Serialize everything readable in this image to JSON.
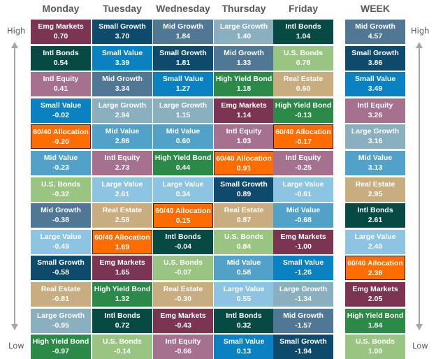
{
  "columns": [
    "Monday",
    "Tuesday",
    "Wednesday",
    "Thursday",
    "Friday",
    "WEEK"
  ],
  "side_labels": {
    "high": "High",
    "low": "Low"
  },
  "colors": {
    "Emg Markets": "#7b3553",
    "Intl Bonds": "#064a43",
    "Intl Equity": "#a5718f",
    "Small Value": "#0a82c2",
    "60/40 Allocation": "#ff6d00",
    "Mid Value": "#52a1c9",
    "U.S. Bonds": "#9ac481",
    "Mid Growth": "#507794",
    "Large Value": "#8cc4e2",
    "Small Growth": "#0d4a6c",
    "Real Estate": "#c7ad7f",
    "Large Growth": "#8aafbf",
    "High Yield Bond": "#2c8a48"
  },
  "chart_data": {
    "type": "table",
    "title": "",
    "columns": [
      "Monday",
      "Tuesday",
      "Wednesday",
      "Thursday",
      "Friday",
      "WEEK"
    ],
    "rows_ranked": [
      [
        [
          "Emg Markets",
          "0.70"
        ],
        [
          "Small Growth",
          "3.70"
        ],
        [
          "Mid Growth",
          "1.84"
        ],
        [
          "Large Growth",
          "1.40"
        ],
        [
          "Intl Bonds",
          "1.04"
        ],
        [
          "Mid Growth",
          "4.57"
        ]
      ],
      [
        [
          "Intl Bonds",
          "0.54"
        ],
        [
          "Small Value",
          "3.39"
        ],
        [
          "Small Growth",
          "1.81"
        ],
        [
          "Mid Growth",
          "1.33"
        ],
        [
          "U.S. Bonds",
          "0.78"
        ],
        [
          "Small Growth",
          "3.86"
        ]
      ],
      [
        [
          "Intl Equity",
          "0.41"
        ],
        [
          "Mid Growth",
          "3.34"
        ],
        [
          "Small Value",
          "1.27"
        ],
        [
          "High Yield Bond",
          "1.18"
        ],
        [
          "Real Estate",
          "0.60"
        ],
        [
          "Small Value",
          "3.49"
        ]
      ],
      [
        [
          "Small Value",
          "-0.02"
        ],
        [
          "Large Growth",
          "2.94"
        ],
        [
          "Large Growth",
          "1.15"
        ],
        [
          "Emg Markets",
          "1.14"
        ],
        [
          "High Yield Bond",
          "-0.13"
        ],
        [
          "Intl Equity",
          "3.26"
        ]
      ],
      [
        [
          "60/40 Allocation",
          "-0.20"
        ],
        [
          "Mid Value",
          "2.86"
        ],
        [
          "Mid Value",
          "0.60"
        ],
        [
          "Intl Equity",
          "1.03"
        ],
        [
          "60/40 Allocation",
          "-0.17"
        ],
        [
          "Large Growth",
          "3.16"
        ]
      ],
      [
        [
          "Mid Value",
          "-0.23"
        ],
        [
          "Intl Equity",
          "2.73"
        ],
        [
          "High Yield Bond",
          "0.44"
        ],
        [
          "60/40 Allocation",
          "0.91"
        ],
        [
          "Intl Equity",
          "-0.25"
        ],
        [
          "Mid Value",
          "3.13"
        ]
      ],
      [
        [
          "U.S. Bonds",
          "-0.32"
        ],
        [
          "Large Value",
          "2.61"
        ],
        [
          "Large Value",
          "0.34"
        ],
        [
          "Small Growth",
          "0.89"
        ],
        [
          "Large Value",
          "-0.61"
        ],
        [
          "Real Estate",
          "2.95"
        ]
      ],
      [
        [
          "Mid Growth",
          "-0.38"
        ],
        [
          "Real Estate",
          "2.58"
        ],
        [
          "60/40 Allocation",
          "0.15"
        ],
        [
          "Real Estate",
          "0.87"
        ],
        [
          "Mid Value",
          "-0.68"
        ],
        [
          "Intl Bonds",
          "2.61"
        ]
      ],
      [
        [
          "Large Value",
          "-0.49"
        ],
        [
          "60/40 Allocation",
          "1.69"
        ],
        [
          "Intl Bonds",
          "-0.04"
        ],
        [
          "U.S. Bonds",
          "0.84"
        ],
        [
          "Emg Markets",
          "-1.00"
        ],
        [
          "Large Value",
          "2.40"
        ]
      ],
      [
        [
          "Small Growth",
          "-0.58"
        ],
        [
          "Emg Markets",
          "1.65"
        ],
        [
          "U.S. Bonds",
          "-0.07"
        ],
        [
          "Mid Value",
          "0.58"
        ],
        [
          "Small Value",
          "-1.26"
        ],
        [
          "60/40 Allocation",
          "2.38"
        ]
      ],
      [
        [
          "Real Estate",
          "-0.81"
        ],
        [
          "High Yield Bond",
          "1.32"
        ],
        [
          "Real Estate",
          "-0.30"
        ],
        [
          "Large Value",
          "0.55"
        ],
        [
          "Large Growth",
          "-1.34"
        ],
        [
          "Emg Markets",
          "2.05"
        ]
      ],
      [
        [
          "Large Growth",
          "-0.95"
        ],
        [
          "Intl Bonds",
          "0.72"
        ],
        [
          "Emg Markets",
          "-0.43"
        ],
        [
          "Intl Bonds",
          "0.32"
        ],
        [
          "Mid Growth",
          "-1.57"
        ],
        [
          "High Yield Bond",
          "1.84"
        ]
      ],
      [
        [
          "High Yield Bond",
          "-0.97"
        ],
        [
          "U.S. Bonds",
          "-0.14"
        ],
        [
          "Intl Equity",
          "-0.66"
        ],
        [
          "Small Value",
          "0.13"
        ],
        [
          "Small Growth",
          "-1.94"
        ],
        [
          "U.S. Bonds",
          "1.09"
        ]
      ]
    ]
  }
}
